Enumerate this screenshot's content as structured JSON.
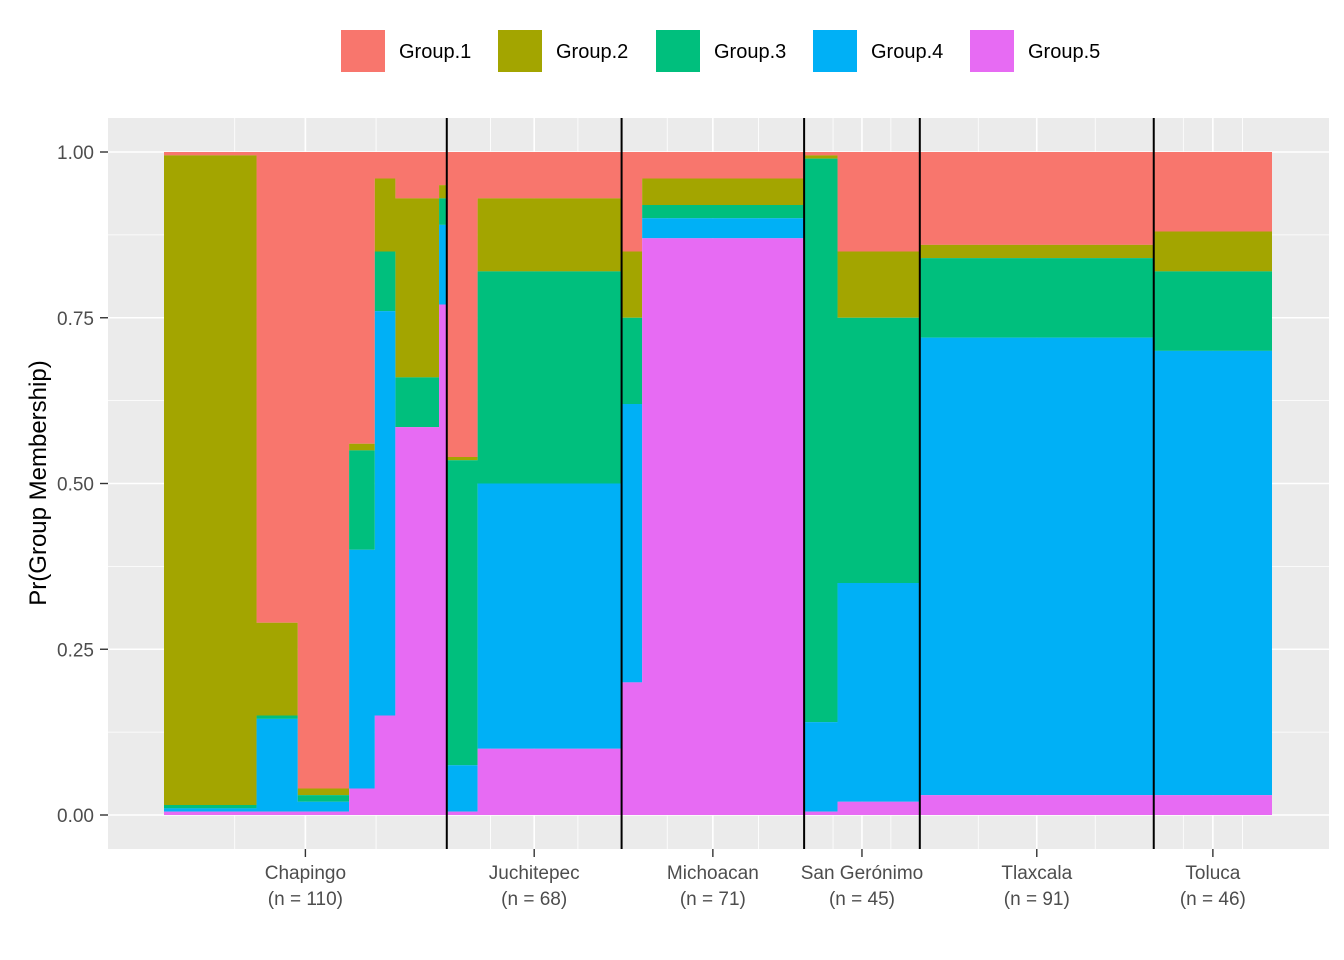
{
  "chart_data": {
    "type": "area",
    "title": "",
    "xlabel": "",
    "ylabel": "Pr(Group Membership)",
    "ylim": [
      0,
      1
    ],
    "y_ticks": [
      "0.00",
      "0.25",
      "0.50",
      "0.75",
      "1.00"
    ],
    "y_tick_values": [
      0,
      0.25,
      0.5,
      0.75,
      1
    ],
    "grid": true,
    "legend_position": "top",
    "series_names": [
      "Group.1",
      "Group.2",
      "Group.3",
      "Group.4",
      "Group.5"
    ],
    "colors": [
      "#F8766D",
      "#A3A500",
      "#00BF7D",
      "#00B0F6",
      "#E76BF3"
    ],
    "panel_background": "#EBEBEB",
    "gridline_color": "#FFFFFF",
    "groups": [
      {
        "name": "Chapingo",
        "n_label": "(n = 110)",
        "n": 110
      },
      {
        "name": "Juchitepec",
        "n_label": "(n = 68)",
        "n": 68
      },
      {
        "name": "Michoacan",
        "n_label": "(n = 71)",
        "n": 71
      },
      {
        "name": "San Gerónimo",
        "n_label": "(n = 45)",
        "n": 45
      },
      {
        "name": "Tlaxcala",
        "n_label": "(n = 91)",
        "n": 91
      },
      {
        "name": "Toluca",
        "n_label": "(n = 46)",
        "n": 46
      }
    ],
    "cumulative_segments": [
      {
        "group": "Chapingo",
        "count": 36,
        "g5": 0.005,
        "g4": 0.01,
        "g3": 0.015,
        "g2": 0.995
      },
      {
        "group": "Chapingo",
        "count": 16,
        "g5": 0.005,
        "g4": 0.145,
        "g3": 0.15,
        "g2": 0.29
      },
      {
        "group": "Chapingo",
        "count": 20,
        "g5": 0.005,
        "g4": 0.02,
        "g3": 0.03,
        "g2": 0.04
      },
      {
        "group": "Chapingo",
        "count": 10,
        "g5": 0.04,
        "g4": 0.4,
        "g3": 0.55,
        "g2": 0.56
      },
      {
        "group": "Chapingo",
        "count": 8,
        "g5": 0.15,
        "g4": 0.76,
        "g3": 0.85,
        "g2": 0.96
      },
      {
        "group": "Chapingo",
        "count": 17,
        "g5": 0.585,
        "g4": 0.585,
        "g3": 0.66,
        "g2": 0.93
      },
      {
        "group": "Chapingo",
        "count": 3,
        "g5": 0.77,
        "g4": 0.89,
        "g3": 0.93,
        "g2": 0.95
      },
      {
        "group": "Juchitepec",
        "count": 12,
        "g5": 0.005,
        "g4": 0.075,
        "g3": 0.535,
        "g2": 0.54
      },
      {
        "group": "Juchitepec",
        "count": 56,
        "g5": 0.1,
        "g4": 0.5,
        "g3": 0.82,
        "g2": 0.93
      },
      {
        "group": "Michoacan",
        "count": 8,
        "g5": 0.2,
        "g4": 0.62,
        "g3": 0.75,
        "g2": 0.85
      },
      {
        "group": "Michoacan",
        "count": 63,
        "g5": 0.87,
        "g4": 0.9,
        "g3": 0.92,
        "g2": 0.96
      },
      {
        "group": "San Gerónimo",
        "count": 13,
        "g5": 0.005,
        "g4": 0.14,
        "g3": 0.99,
        "g2": 0.995
      },
      {
        "group": "San Gerónimo",
        "count": 32,
        "g5": 0.02,
        "g4": 0.35,
        "g3": 0.75,
        "g2": 0.85
      },
      {
        "group": "Tlaxcala",
        "count": 91,
        "g5": 0.03,
        "g4": 0.72,
        "g3": 0.84,
        "g2": 0.86
      },
      {
        "group": "Toluca",
        "count": 46,
        "g5": 0.03,
        "g4": 0.7,
        "g3": 0.82,
        "g2": 0.88
      }
    ]
  }
}
